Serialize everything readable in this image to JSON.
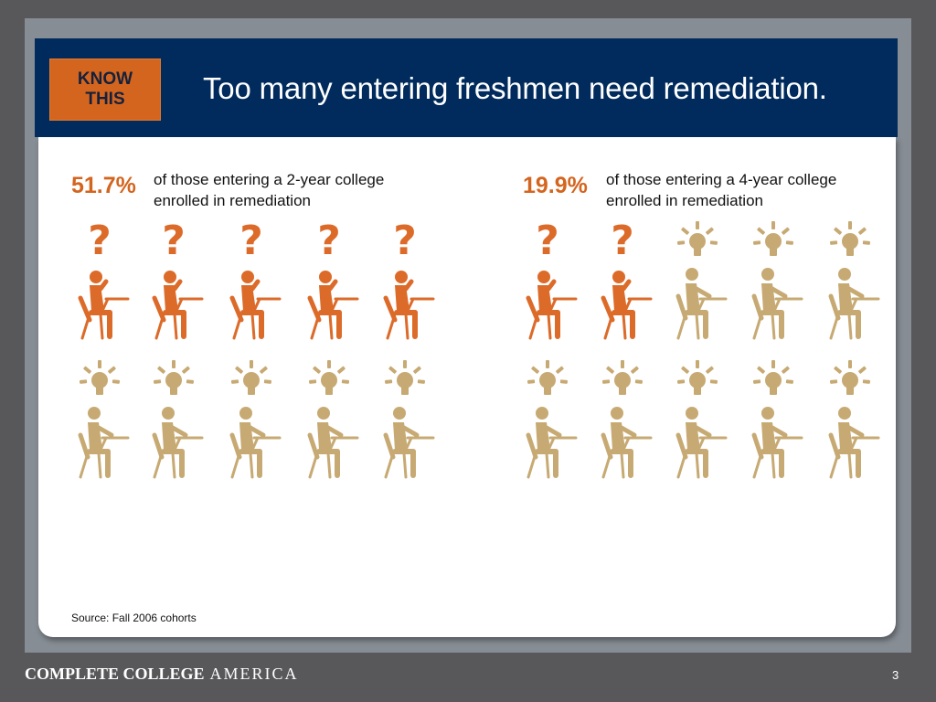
{
  "header": {
    "badge_line1": "KNOW",
    "badge_line2": "THIS",
    "title": "Too many entering freshmen need remediation."
  },
  "stats": [
    {
      "percent": "51.7%",
      "line1": "of those entering a 2-year college",
      "line2": "enrolled in remediation",
      "remediated_count": 5,
      "total_count": 10
    },
    {
      "percent": "19.9%",
      "line1": "of those entering a 4-year college",
      "line2": "enrolled in remediation",
      "remediated_count": 2,
      "total_count": 10
    }
  ],
  "icons": {
    "remediated": "question-mark-student-icon",
    "not_remediated": "lightbulb-student-icon"
  },
  "colors": {
    "remediated": "#dc6b2a",
    "not_remediated": "#c7aa73",
    "header": "#002b5c",
    "badge": "#d4651f"
  },
  "footer": {
    "source": "Source: Fall 2006 cohorts",
    "brand_bold": "COMPLETE COLLEGE",
    "brand_light": "AMERICA",
    "page_number": "3"
  }
}
